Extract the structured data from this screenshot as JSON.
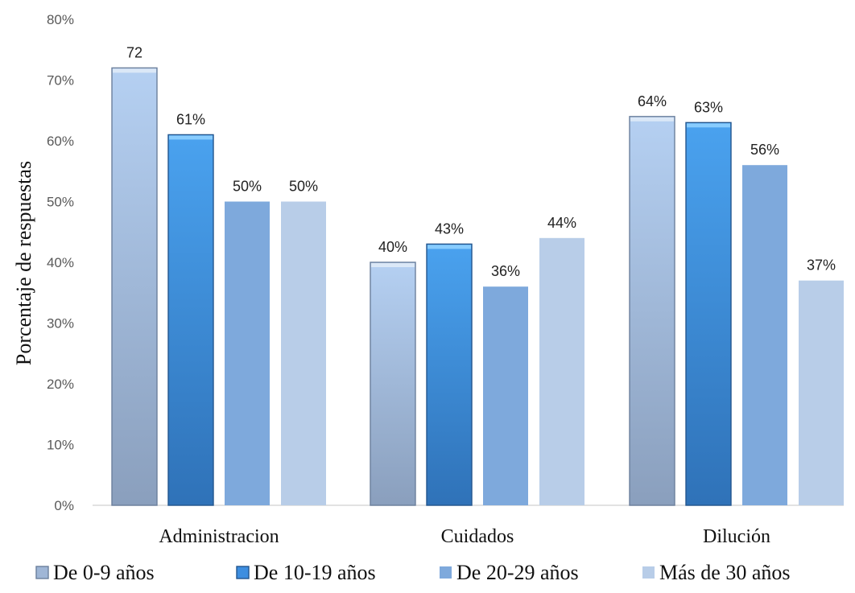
{
  "chart_data": {
    "type": "bar",
    "title": "",
    "xlabel": "",
    "ylabel": "Porcentaje de respuestas",
    "categories": [
      "Administracion",
      "Cuidados",
      "Dilución"
    ],
    "ylim": [
      0,
      80
    ],
    "yticks": [
      "0%",
      "10%",
      "20%",
      "30%",
      "40%",
      "50%",
      "60%",
      "70%",
      "80%"
    ],
    "legend_position": "bottom",
    "grid": false,
    "series": [
      {
        "name": "De 0-9 años",
        "values": [
          72,
          40,
          64
        ],
        "labels": [
          "72",
          "40%",
          "64%"
        ],
        "color": "#9fb6d6"
      },
      {
        "name": "De 10-19 años",
        "values": [
          61,
          43,
          63
        ],
        "labels": [
          "61%",
          "43%",
          "63%"
        ],
        "color": "#3d8ee0"
      },
      {
        "name": "De 20-29 años",
        "values": [
          50,
          36,
          56
        ],
        "labels": [
          "50%",
          "36%",
          "56%"
        ],
        "color": "#7ea9dc"
      },
      {
        "name": "Más de 30 años",
        "values": [
          50,
          44,
          37
        ],
        "labels": [
          "50%",
          "44%",
          "37%"
        ],
        "color": "#b8cde8"
      }
    ]
  }
}
